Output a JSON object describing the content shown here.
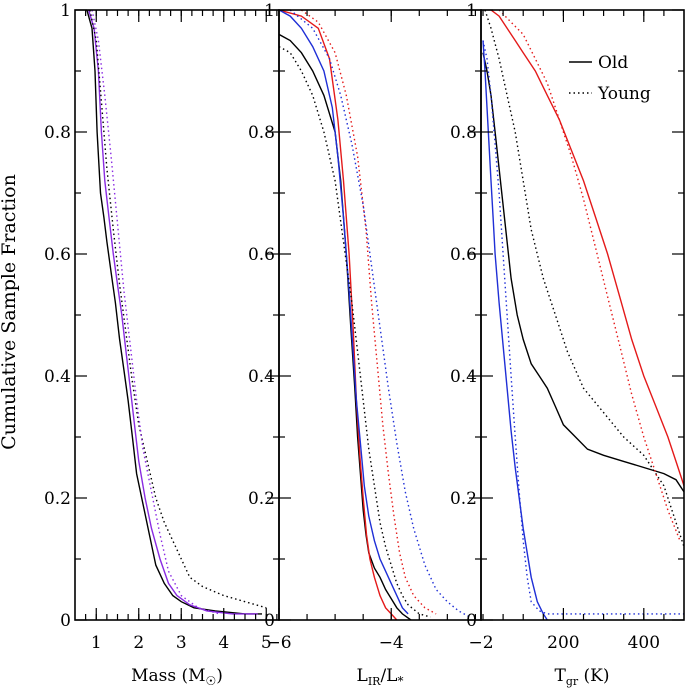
{
  "chart_data": {
    "type": "line",
    "ylabel": "Cumulative Sample Fraction",
    "ylim": [
      0,
      1
    ],
    "yticks": [
      0,
      0.2,
      0.4,
      0.6,
      0.8,
      1
    ],
    "ytick_labels": [
      "0",
      "0.2",
      "0.4",
      "0.6",
      "0.8",
      "1"
    ],
    "legend": {
      "placement": "top-right",
      "entries": [
        {
          "label": "Old",
          "style": "solid"
        },
        {
          "label": "Young",
          "style": "dotted"
        }
      ]
    },
    "colors": {
      "black": "#000000",
      "red": "#e41a1a",
      "blue": "#1f2fd6",
      "purple": "#8a2be2"
    },
    "panels": [
      {
        "name": "mass",
        "xlabel_main": "Mass (M",
        "xlabel_sym": "☉",
        "xlabel_close": ")",
        "xlim": [
          0.5,
          5.3
        ],
        "xticks": [
          1,
          2,
          3,
          4,
          5
        ],
        "xtick_labels": [
          "1",
          "2",
          "3",
          "4",
          "5"
        ],
        "series": [
          {
            "name": "Old",
            "color": "black",
            "style": "solid",
            "x": [
              0.78,
              0.9,
              0.97,
              1.02,
              1.1,
              1.18,
              1.25,
              1.35,
              1.45,
              1.55,
              1.65,
              1.75,
              1.85,
              1.95,
              2.1,
              2.25,
              2.4,
              2.6,
              2.8,
              3.0,
              3.3,
              3.8,
              4.5,
              4.9
            ],
            "y": [
              1.0,
              0.97,
              0.9,
              0.8,
              0.7,
              0.66,
              0.62,
              0.57,
              0.52,
              0.46,
              0.41,
              0.36,
              0.3,
              0.24,
              0.19,
              0.14,
              0.09,
              0.06,
              0.04,
              0.03,
              0.02,
              0.015,
              0.01,
              0.01
            ]
          },
          {
            "name": "Old",
            "color": "purple",
            "style": "solid",
            "x": [
              0.82,
              0.95,
              1.05,
              1.12,
              1.2,
              1.3,
              1.4,
              1.5,
              1.6,
              1.7,
              1.8,
              1.9,
              2.0,
              2.15,
              2.3,
              2.5,
              2.7,
              2.9,
              3.2,
              3.6,
              4.2,
              4.8
            ],
            "y": [
              1.0,
              0.97,
              0.9,
              0.8,
              0.72,
              0.66,
              0.6,
              0.55,
              0.5,
              0.44,
              0.38,
              0.32,
              0.26,
              0.2,
              0.15,
              0.1,
              0.06,
              0.04,
              0.025,
              0.015,
              0.01,
              0.01
            ]
          },
          {
            "name": "Young",
            "color": "black",
            "style": "dotted",
            "x": [
              0.85,
              1.0,
              1.12,
              1.25,
              1.4,
              1.55,
              1.7,
              1.85,
              2.0,
              2.2,
              2.4,
              2.6,
              2.8,
              3.0,
              3.2,
              3.5,
              4.0,
              4.5,
              5.0
            ],
            "y": [
              1.0,
              0.95,
              0.85,
              0.74,
              0.64,
              0.55,
              0.47,
              0.39,
              0.32,
              0.26,
              0.2,
              0.16,
              0.13,
              0.1,
              0.07,
              0.055,
              0.04,
              0.03,
              0.02
            ]
          },
          {
            "name": "Young",
            "color": "purple",
            "style": "dotted",
            "x": [
              0.9,
              1.05,
              1.2,
              1.35,
              1.5,
              1.65,
              1.8,
              1.95,
              2.1,
              2.3,
              2.5,
              2.7,
              3.0,
              3.4,
              3.9
            ],
            "y": [
              1.0,
              0.95,
              0.86,
              0.76,
              0.65,
              0.54,
              0.45,
              0.36,
              0.28,
              0.21,
              0.14,
              0.08,
              0.04,
              0.02,
              0.01
            ]
          }
        ]
      },
      {
        "name": "lir",
        "xlabel_main": "L",
        "xlabel_sub": "IR",
        "xlabel_mid": "/L",
        "xlabel_sub2": "*",
        "xlim": [
          -6,
          -2.4
        ],
        "xticks": [
          -6,
          -4
        ],
        "xtick_labels": [
          "−6",
          "−4"
        ],
        "series": [
          {
            "name": "Old",
            "color": "black",
            "style": "solid",
            "x": [
              -6.0,
              -5.8,
              -5.6,
              -5.4,
              -5.2,
              -5.0,
              -4.9,
              -4.8,
              -4.72,
              -4.65,
              -4.6,
              -4.55,
              -4.5,
              -4.45,
              -4.4,
              -4.3,
              -4.2,
              -4.1,
              -4.0,
              -3.9,
              -3.8,
              -3.65
            ],
            "y": [
              0.96,
              0.95,
              0.93,
              0.9,
              0.86,
              0.8,
              0.72,
              0.6,
              0.48,
              0.38,
              0.3,
              0.24,
              0.18,
              0.14,
              0.11,
              0.085,
              0.07,
              0.05,
              0.035,
              0.02,
              0.01,
              0.0
            ]
          },
          {
            "name": "Old",
            "color": "red",
            "style": "solid",
            "x": [
              -6.0,
              -5.6,
              -5.3,
              -5.1,
              -4.95,
              -4.85,
              -4.75,
              -4.68,
              -4.62,
              -4.56,
              -4.5,
              -4.44,
              -4.38,
              -4.3,
              -4.2,
              -4.1,
              -4.0,
              -3.9
            ],
            "y": [
              1.0,
              0.99,
              0.97,
              0.92,
              0.82,
              0.72,
              0.6,
              0.48,
              0.36,
              0.27,
              0.2,
              0.14,
              0.1,
              0.07,
              0.04,
              0.02,
              0.01,
              0.0
            ]
          },
          {
            "name": "Old",
            "color": "blue",
            "style": "solid",
            "x": [
              -6.0,
              -5.8,
              -5.6,
              -5.4,
              -5.2,
              -5.05,
              -4.95,
              -4.85,
              -4.75,
              -4.68,
              -4.62,
              -4.55,
              -4.48,
              -4.4,
              -4.3,
              -4.2,
              -4.1,
              -4.0,
              -3.9,
              -3.8,
              -3.7
            ],
            "y": [
              1.0,
              0.99,
              0.97,
              0.94,
              0.9,
              0.84,
              0.76,
              0.66,
              0.54,
              0.44,
              0.36,
              0.29,
              0.22,
              0.17,
              0.13,
              0.1,
              0.08,
              0.06,
              0.04,
              0.02,
              0.01
            ]
          },
          {
            "name": "Young",
            "color": "black",
            "style": "dotted",
            "x": [
              -6.0,
              -5.8,
              -5.6,
              -5.4,
              -5.2,
              -5.0,
              -4.85,
              -4.7,
              -4.6,
              -4.5,
              -4.4,
              -4.3,
              -4.2,
              -4.1,
              -4.0,
              -3.9,
              -3.8,
              -3.7,
              -3.5,
              -3.3
            ],
            "y": [
              0.94,
              0.93,
              0.9,
              0.86,
              0.8,
              0.72,
              0.62,
              0.52,
              0.44,
              0.36,
              0.28,
              0.22,
              0.16,
              0.12,
              0.09,
              0.06,
              0.04,
              0.025,
              0.01,
              0.005
            ]
          },
          {
            "name": "Young",
            "color": "red",
            "style": "dotted",
            "x": [
              -5.6,
              -5.3,
              -5.0,
              -4.8,
              -4.6,
              -4.45,
              -4.35,
              -4.25,
              -4.15,
              -4.05,
              -3.95,
              -3.85,
              -3.75,
              -3.6,
              -3.4,
              -3.2
            ],
            "y": [
              1.0,
              0.98,
              0.93,
              0.86,
              0.76,
              0.64,
              0.52,
              0.42,
              0.32,
              0.24,
              0.17,
              0.11,
              0.07,
              0.04,
              0.02,
              0.01
            ]
          },
          {
            "name": "Young",
            "color": "blue",
            "style": "dotted",
            "x": [
              -5.8,
              -5.4,
              -5.1,
              -4.9,
              -4.7,
              -4.5,
              -4.35,
              -4.2,
              -4.05,
              -3.9,
              -3.75,
              -3.6,
              -3.4,
              -3.2,
              -3.0,
              -2.8,
              -2.6
            ],
            "y": [
              1.0,
              0.97,
              0.92,
              0.86,
              0.78,
              0.68,
              0.58,
              0.48,
              0.38,
              0.29,
              0.21,
              0.15,
              0.09,
              0.05,
              0.03,
              0.015,
              0.005
            ]
          }
        ]
      },
      {
        "name": "tgr",
        "xlabel_main": "T",
        "xlabel_sub": "gr",
        "xlabel_unit": " (K)",
        "xlim": [
          -5,
          500
        ],
        "xticks": [
          200,
          400
        ],
        "xtick_labels": [
          "200",
          "400"
        ],
        "panel_edge_label": "−2",
        "series": [
          {
            "name": "Old",
            "color": "black",
            "style": "solid",
            "x": [
              0,
              10,
              20,
              30,
              40,
              50,
              60,
              70,
              85,
              100,
              120,
              140,
              160,
              180,
              200,
              230,
              260,
              300,
              350,
              400,
              450,
              480,
              500
            ],
            "y": [
              0.93,
              0.9,
              0.86,
              0.8,
              0.74,
              0.68,
              0.62,
              0.56,
              0.5,
              0.46,
              0.42,
              0.4,
              0.38,
              0.35,
              0.32,
              0.3,
              0.28,
              0.27,
              0.26,
              0.25,
              0.24,
              0.23,
              0.21
            ]
          },
          {
            "name": "Old",
            "color": "red",
            "style": "solid",
            "x": [
              20,
              40,
              60,
              80,
              100,
              130,
              160,
              190,
              220,
              250,
              280,
              310,
              340,
              370,
              400,
              430,
              460,
              480,
              500
            ],
            "y": [
              1.0,
              0.99,
              0.97,
              0.95,
              0.93,
              0.9,
              0.86,
              0.82,
              0.77,
              0.72,
              0.66,
              0.6,
              0.53,
              0.46,
              0.4,
              0.35,
              0.3,
              0.26,
              0.22
            ]
          },
          {
            "name": "Old",
            "color": "blue",
            "style": "solid",
            "x": [
              0,
              5,
              10,
              15,
              20,
              25,
              30,
              40,
              50,
              60,
              70,
              80,
              90,
              100,
              110,
              120,
              135,
              150,
              160
            ],
            "y": [
              0.95,
              0.9,
              0.84,
              0.78,
              0.72,
              0.66,
              0.6,
              0.52,
              0.45,
              0.38,
              0.31,
              0.25,
              0.2,
              0.15,
              0.11,
              0.07,
              0.03,
              0.01,
              0.0
            ]
          },
          {
            "name": "Young",
            "color": "black",
            "style": "dotted",
            "x": [
              5,
              20,
              40,
              60,
              80,
              100,
              120,
              150,
              180,
              210,
              250,
              300,
              350,
              400,
              450,
              500
            ],
            "y": [
              1.0,
              0.97,
              0.92,
              0.86,
              0.8,
              0.72,
              0.64,
              0.56,
              0.5,
              0.44,
              0.38,
              0.34,
              0.3,
              0.27,
              0.22,
              0.12
            ]
          },
          {
            "name": "Young",
            "color": "red",
            "style": "dotted",
            "x": [
              40,
              70,
              100,
              130,
              160,
              190,
              220,
              250,
              280,
              310,
              340,
              370,
              400,
              430,
              460,
              490
            ],
            "y": [
              1.0,
              0.98,
              0.96,
              0.92,
              0.88,
              0.82,
              0.76,
              0.69,
              0.61,
              0.53,
              0.45,
              0.37,
              0.3,
              0.24,
              0.18,
              0.13
            ]
          },
          {
            "name": "Young",
            "color": "blue",
            "style": "dotted",
            "x": [
              0,
              10,
              20,
              30,
              40,
              50,
              60,
              70,
              80,
              90,
              100,
              110,
              120,
              140,
              160,
              200,
              300,
              400,
              500
            ],
            "y": [
              0.95,
              0.92,
              0.86,
              0.78,
              0.7,
              0.6,
              0.5,
              0.4,
              0.3,
              0.21,
              0.13,
              0.07,
              0.03,
              0.015,
              0.01,
              0.01,
              0.01,
              0.01,
              0.01
            ]
          }
        ]
      }
    ]
  }
}
